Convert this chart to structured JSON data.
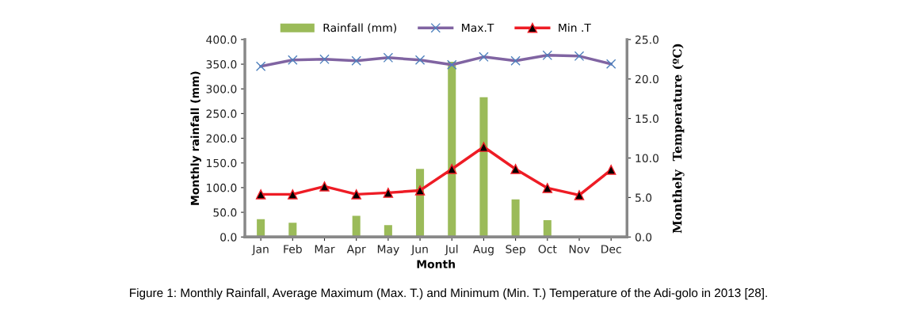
{
  "chart_data": {
    "type": "bar",
    "xlabel": "Month",
    "ylabel": "Monthly rainfall (mm)",
    "y2label": "Monthely  Temperature (ºC)",
    "categories": [
      "Jan",
      "Feb",
      "Mar",
      "Apr",
      "May",
      "Jun",
      "Jul",
      "Aug",
      "Sep",
      "Oct",
      "Nov",
      "Dec"
    ],
    "series": [
      {
        "name": "Rainfall (mm)",
        "color": "#9bbb59",
        "values": [
          36,
          29,
          0,
          43,
          24,
          138,
          355,
          283,
          76,
          34,
          0,
          0
        ]
      },
      {
        "name": "Max.T",
        "type": "line",
        "axis": "y2",
        "color": "#8064a2",
        "marker": "cross",
        "values": [
          21.6,
          22.4,
          22.5,
          22.3,
          22.7,
          22.4,
          21.8,
          22.8,
          22.3,
          23.0,
          22.9,
          21.9
        ]
      },
      {
        "name": "Min .T",
        "type": "line",
        "axis": "y2",
        "color": "#ee1c25",
        "marker": "triangle",
        "values": [
          5.4,
          5.4,
          6.4,
          5.4,
          5.6,
          5.9,
          8.6,
          11.4,
          8.6,
          6.2,
          5.3,
          8.5
        ]
      }
    ],
    "ylim": [
      0,
      400
    ],
    "yticks": [
      {
        "value": 0,
        "label": "0.0"
      },
      {
        "value": 50,
        "label": "50.0"
      },
      {
        "value": 100,
        "label": "100.0"
      },
      {
        "value": 150,
        "label": "150.0"
      },
      {
        "value": 200,
        "label": "200.0"
      },
      {
        "value": 250,
        "label": "250.0"
      },
      {
        "value": 300,
        "label": "300.0"
      },
      {
        "value": 350,
        "label": "350.0"
      },
      {
        "value": 400,
        "label": "400.0"
      }
    ],
    "y2lim": [
      0,
      25
    ],
    "y2ticks": [
      {
        "value": 0,
        "label": "0.0"
      },
      {
        "value": 5,
        "label": "5.0"
      },
      {
        "value": 10,
        "label": "10.0"
      },
      {
        "value": 15,
        "label": "15.0"
      },
      {
        "value": 20,
        "label": "20.0"
      },
      {
        "value": 25,
        "label": "25.0"
      }
    ],
    "grid": false,
    "legend": "top",
    "line_style": "solid",
    "annotations": [
      "Figure 1: Monthly Rainfall, Average Maximum (Max. T.) and Minimum (Min. T.) Temperature of the Adi-golo in 2013 [28]."
    ]
  }
}
